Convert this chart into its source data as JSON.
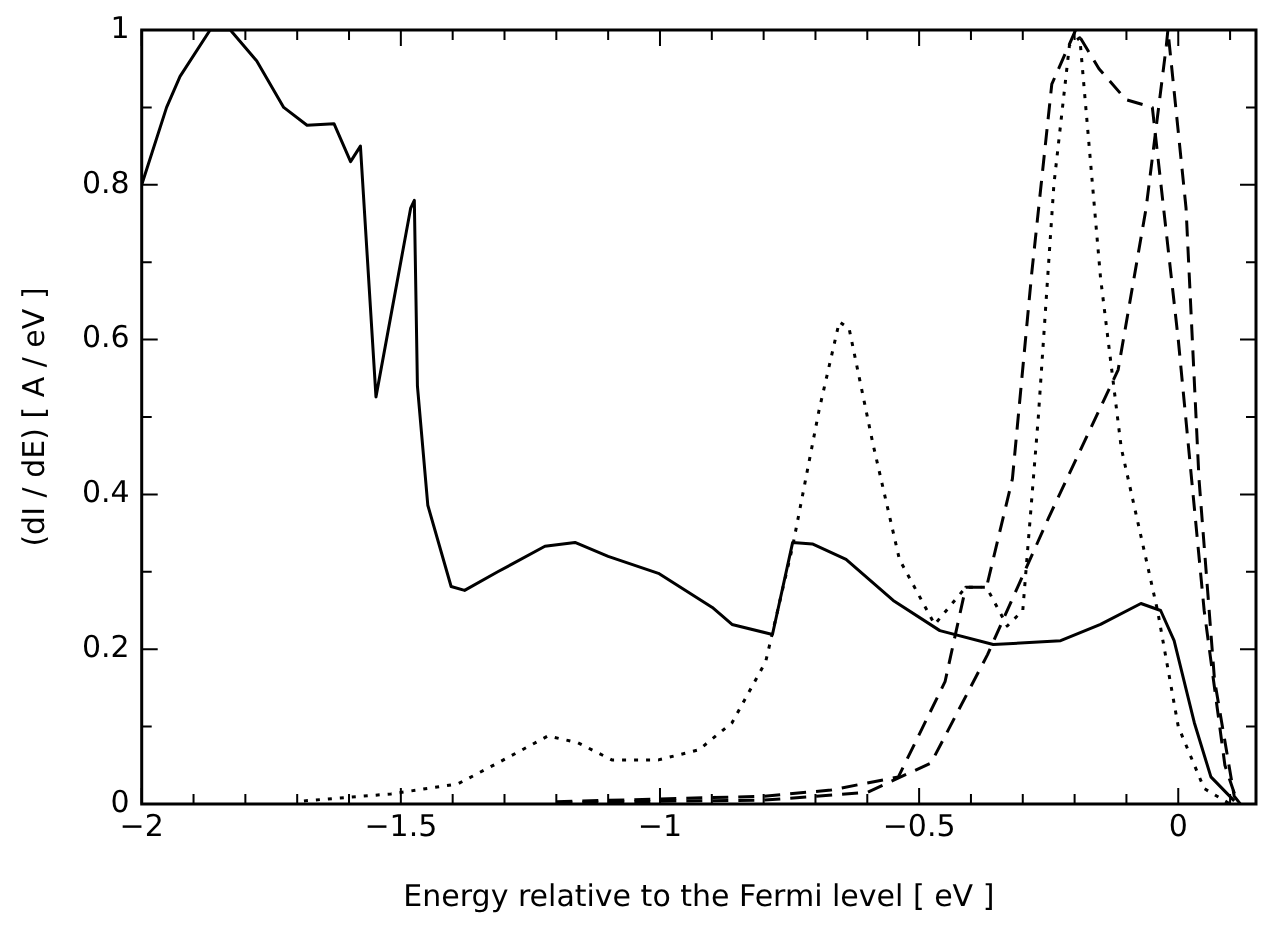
{
  "chart_data": {
    "type": "line",
    "xlabel": "Energy relative to the Fermi level [ eV ]",
    "ylabel": "(dI / dE) [ A / eV ]",
    "xlim": [
      -2,
      0.15
    ],
    "ylim": [
      0,
      1
    ],
    "xticks": [
      -2,
      {
        "value": -1.9,
        "label": null
      },
      {
        "value": -1.8,
        "label": null
      },
      {
        "value": -1.7,
        "label": null
      },
      {
        "value": -1.6,
        "label": null
      },
      -1.5,
      {
        "value": -1.4,
        "label": null
      },
      {
        "value": -1.3,
        "label": null
      },
      {
        "value": -1.2,
        "label": null
      },
      {
        "value": -1.1,
        "label": null
      },
      -1,
      {
        "value": -0.9,
        "label": null
      },
      {
        "value": -0.8,
        "label": null
      },
      {
        "value": -0.7,
        "label": null
      },
      {
        "value": -0.6,
        "label": null
      },
      -0.5,
      {
        "value": -0.4,
        "label": null
      },
      {
        "value": -0.3,
        "label": null
      },
      {
        "value": -0.2,
        "label": null
      },
      {
        "value": -0.1,
        "label": null
      },
      0,
      {
        "value": 0.1,
        "label": null
      }
    ],
    "yticks": [
      0,
      {
        "value": 0.1,
        "label": null
      },
      0.2,
      {
        "value": 0.3,
        "label": null
      },
      0.4,
      {
        "value": 0.5,
        "label": null
      },
      0.6,
      {
        "value": 0.7,
        "label": null
      },
      0.8,
      {
        "value": 0.9,
        "label": null
      },
      1
    ],
    "grid": false,
    "legend": false,
    "marker": "none",
    "series": [
      {
        "color": "#000000",
        "line_style": "solid",
        "x": [
          -2,
          -1.952,
          -1.926,
          -1.868,
          -1.829,
          -1.778,
          -1.726,
          -1.681,
          -1.629,
          -1.597,
          -1.578,
          -1.548,
          -1.481,
          -1.474,
          -1.468,
          -1.448,
          -1.403,
          -1.377,
          -1.313,
          -1.222,
          -1.164,
          -1.1,
          -1.003,
          -0.899,
          -0.861,
          -0.783,
          -0.744,
          -0.706,
          -0.641,
          -0.55,
          -0.46,
          -0.357,
          -0.227,
          -0.15,
          -0.072,
          -0.034,
          -0.008,
          0.031,
          0.063,
          0.108
        ],
        "values": [
          0.8,
          0.9,
          0.94,
          1,
          1,
          0.96,
          0.9,
          0.877,
          0.879,
          0.83,
          0.85,
          0.526,
          0.77,
          0.78,
          0.54,
          0.386,
          0.281,
          0.276,
          0.3,
          0.333,
          0.338,
          0.32,
          0.298,
          0.254,
          0.232,
          0.219,
          0.338,
          0.336,
          0.316,
          0.263,
          0.224,
          0.206,
          0.211,
          0.232,
          0.259,
          0.25,
          0.211,
          0.105,
          0.035,
          0.004
        ]
      },
      {
        "color": "#000000",
        "line_style": "dotted",
        "x": [
          -1.687,
          -1.519,
          -1.39,
          -1.313,
          -1.216,
          -1.158,
          -1.093,
          -1.003,
          -0.925,
          -0.861,
          -0.796,
          -0.744,
          -0.693,
          -0.654,
          -0.635,
          -0.589,
          -0.538,
          -0.47,
          -0.41,
          -0.37,
          -0.33,
          -0.3,
          -0.27,
          -0.24,
          -0.21,
          -0.19,
          -0.15,
          -0.11,
          -0.04,
          0,
          0.05,
          0.1
        ],
        "values": [
          0.004,
          0.013,
          0.026,
          0.053,
          0.088,
          0.079,
          0.057,
          0.057,
          0.07,
          0.105,
          0.184,
          0.333,
          0.509,
          0.623,
          0.614,
          0.465,
          0.316,
          0.232,
          0.28,
          0.28,
          0.23,
          0.25,
          0.5,
          0.8,
          0.98,
          0.99,
          0.68,
          0.46,
          0.25,
          0.1,
          0.02,
          0
        ]
      },
      {
        "color": "#000000",
        "line_style": "dashed",
        "x": [
          -1.2,
          -0.8,
          -0.67,
          -0.54,
          -0.45,
          -0.41,
          -0.37,
          -0.32,
          -0.283,
          -0.244,
          -0.198,
          -0.153,
          -0.101,
          -0.05,
          0,
          0.05,
          0.09,
          0.115
        ],
        "values": [
          0.003,
          0.01,
          0.018,
          0.035,
          0.158,
          0.28,
          0.28,
          0.42,
          0.684,
          0.93,
          1,
          0.95,
          0.91,
          0.9,
          0.6,
          0.25,
          0.05,
          0
        ]
      },
      {
        "color": "#000000",
        "line_style": "dashed",
        "x": [
          -1.2,
          -0.8,
          -0.6,
          -0.477,
          -0.368,
          -0.25,
          -0.116,
          -0.062,
          -0.023,
          -0.02,
          0.015,
          0.04,
          0.07,
          0.108,
          0.12
        ],
        "values": [
          0.002,
          0.005,
          0.015,
          0.053,
          0.193,
          0.37,
          0.561,
          0.77,
          0.98,
          1,
          0.77,
          0.42,
          0.16,
          0.01,
          0
        ]
      }
    ]
  }
}
